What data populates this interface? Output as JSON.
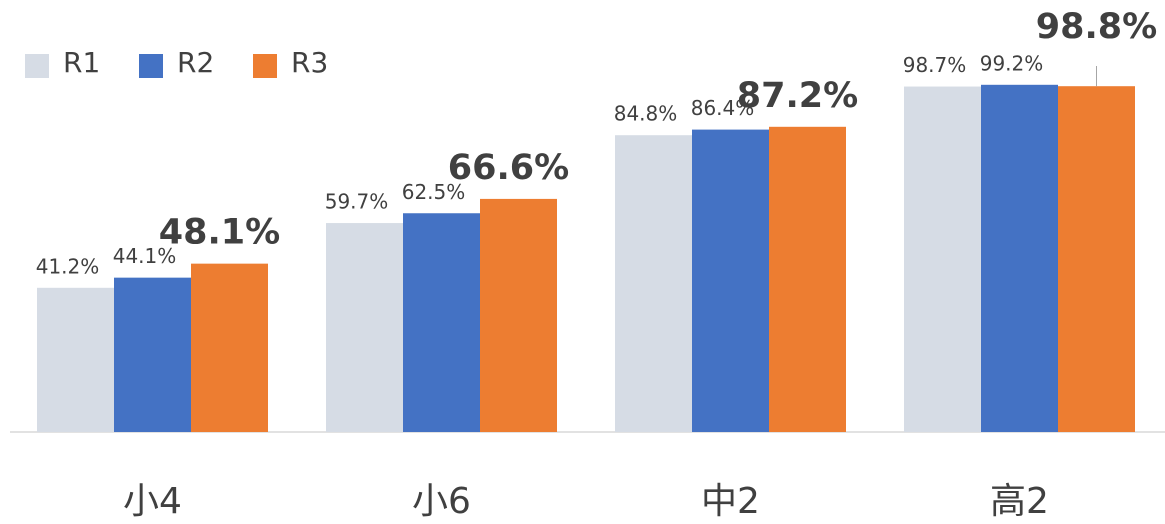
{
  "chart_data": {
    "type": "bar",
    "categories": [
      "小4",
      "小6",
      "中2",
      "高2"
    ],
    "series": [
      {
        "name": "R1",
        "color": "#d6dce5",
        "values": [
          41.2,
          59.7,
          84.8,
          98.7
        ],
        "value_labels": [
          "41.2%",
          "59.7%",
          "84.8%",
          "98.7%"
        ]
      },
      {
        "name": "R2",
        "color": "#4472c4",
        "values": [
          44.1,
          62.5,
          86.4,
          99.2
        ],
        "value_labels": [
          "44.1%",
          "62.5%",
          "86.4%",
          "99.2%"
        ]
      },
      {
        "name": "R3",
        "color": "#ed7d31",
        "values": [
          48.1,
          66.6,
          87.2,
          98.8
        ],
        "value_labels": [
          "48.1%",
          "66.6%",
          "87.2%",
          "98.8%"
        ]
      }
    ],
    "ylim": [
      0,
      100
    ],
    "legend": "top-left"
  }
}
